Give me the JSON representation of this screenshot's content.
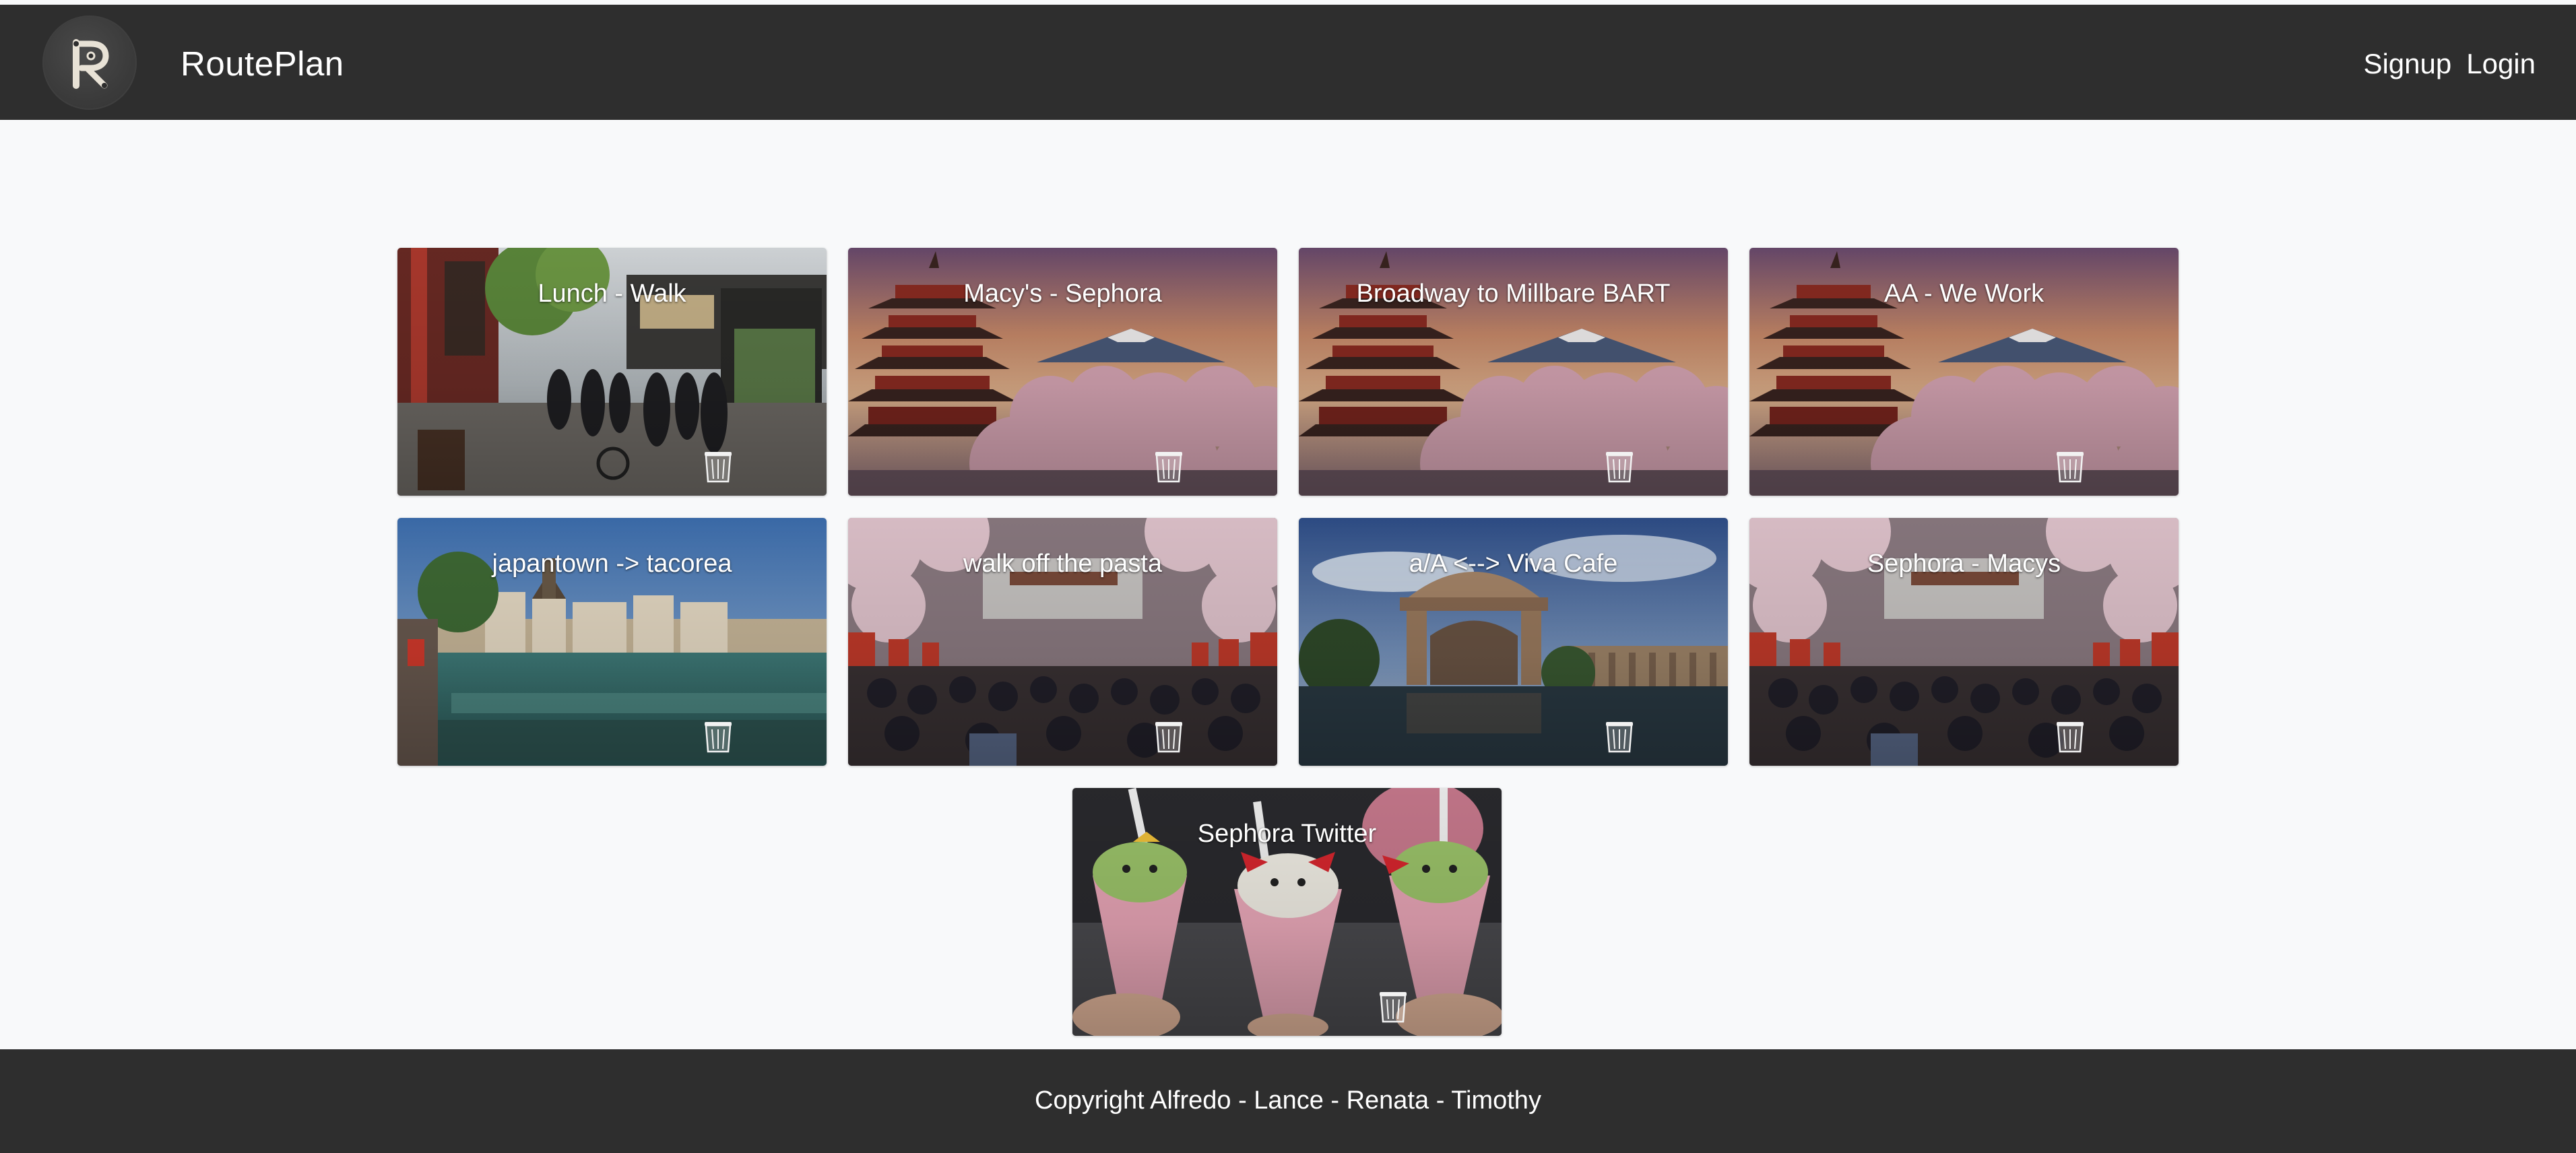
{
  "header": {
    "brand": "RoutePlan",
    "logo_letter": "R",
    "nav": {
      "signup": "Signup",
      "login": "Login"
    }
  },
  "routes": [
    {
      "title": "Lunch - Walk",
      "image": "asakusa-street"
    },
    {
      "title": "Macy's - Sephora",
      "image": "pagoda-fuji"
    },
    {
      "title": "Broadway to Millbare BART",
      "image": "pagoda-fuji"
    },
    {
      "title": "AA - We Work",
      "image": "pagoda-fuji"
    },
    {
      "title": "japantown -> tacorea",
      "image": "lucerne-river"
    },
    {
      "title": "walk off the pasta",
      "image": "festival-crowd"
    },
    {
      "title": "a/A <--> Viva Cafe",
      "image": "palace-fine-arts"
    },
    {
      "title": "Sephora - Macys",
      "image": "festival-crowd"
    },
    {
      "title": "Sephora Twitter",
      "image": "crepes"
    }
  ],
  "icons": {
    "delete": "trash-icon"
  },
  "footer": {
    "copyright": "Copyright Alfredo - Lance - Renata - Timothy"
  },
  "colors": {
    "navbar": "#2e2e2e",
    "page_background": "#f8f9fa",
    "text_on_dark": "#ffffff"
  }
}
